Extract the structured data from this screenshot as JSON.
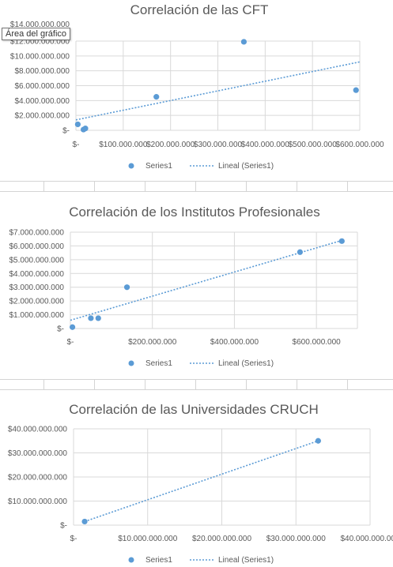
{
  "tooltip": "Área del gráfico",
  "chart_data": [
    {
      "type": "scatter",
      "title": "Correlación de las CFT",
      "xlim": [
        0,
        600000000
      ],
      "ylim": [
        0,
        12000000000
      ],
      "x_ticks": [
        "$-",
        "$100.000.000",
        "$200.000.000",
        "$300.000.000",
        "$400.000.000",
        "$500.000.000",
        "$600.000.000"
      ],
      "y_ticks": [
        "$-",
        "$2.000.000.000",
        "$4.000.000.000",
        "$6.000.000.000",
        "$8.000.000.000",
        "$10.000.000.000",
        "$12.000.000.000"
      ],
      "y_top_partial": "$14.000.000.000",
      "series": [
        {
          "name": "Series1",
          "x": [
            4000000,
            16000000,
            20000000,
            170000000,
            355000000,
            592000000
          ],
          "y": [
            800000000,
            100000000,
            250000000,
            4500000000,
            11900000000,
            5400000000
          ]
        }
      ],
      "trendline": {
        "name": "Lineal (Series1)",
        "x": [
          0,
          600000000
        ],
        "y": [
          1400000000,
          9200000000
        ]
      },
      "legend": {
        "placement": "bottom",
        "items": [
          "Series1",
          "Lineal (Series1)"
        ]
      }
    },
    {
      "type": "scatter",
      "title": "Correlación de los Institutos Profesionales",
      "xlim": [
        0,
        700000000
      ],
      "ylim": [
        0,
        7000000000
      ],
      "x_ticks": [
        "$-",
        "$200.000.000",
        "$400.000.000",
        "$600.000.000"
      ],
      "x_tick_values": [
        0,
        200000000,
        400000000,
        600000000
      ],
      "y_ticks": [
        "$-",
        "$1.000.000.000",
        "$2.000.000.000",
        "$3.000.000.000",
        "$4.000.000.000",
        "$5.000.000.000",
        "$6.000.000.000",
        "$7.000.000.000"
      ],
      "series": [
        {
          "name": "Series1",
          "x": [
            5000000,
            50000000,
            68000000,
            138000000,
            560000000,
            662000000
          ],
          "y": [
            100000000,
            750000000,
            750000000,
            3000000000,
            5550000000,
            6350000000
          ]
        }
      ],
      "trendline": {
        "name": "Lineal (Series1)",
        "x": [
          0,
          662000000
        ],
        "y": [
          600000000,
          6400000000
        ]
      },
      "legend": {
        "placement": "bottom",
        "items": [
          "Series1",
          "Lineal (Series1)"
        ]
      }
    },
    {
      "type": "scatter",
      "title": "Correlación de las Universidades CRUCH",
      "xlim": [
        0,
        40000000000
      ],
      "ylim": [
        0,
        40000000000
      ],
      "x_ticks": [
        "$-",
        "$10.000.000.000",
        "$20.000.000.000",
        "$30.000.000.000",
        "$40.000.000.000"
      ],
      "y_ticks": [
        "$-",
        "$10.000.000.000",
        "$20.000.000.000",
        "$30.000.000.000",
        "$40.000.000.000"
      ],
      "series": [
        {
          "name": "Series1",
          "x": [
            1500000000,
            33000000000
          ],
          "y": [
            1500000000,
            35000000000
          ]
        }
      ],
      "trendline": {
        "name": "Lineal (Series1)",
        "x": [
          1500000000,
          33000000000
        ],
        "y": [
          1500000000,
          35000000000
        ]
      },
      "legend": {
        "placement": "bottom",
        "items": [
          "Series1",
          "Lineal (Series1)"
        ]
      }
    }
  ],
  "colors": {
    "point": "#5b9bd5",
    "trend": "#5b9bd5",
    "text": "#595959",
    "grid": "#d9d9d9"
  }
}
